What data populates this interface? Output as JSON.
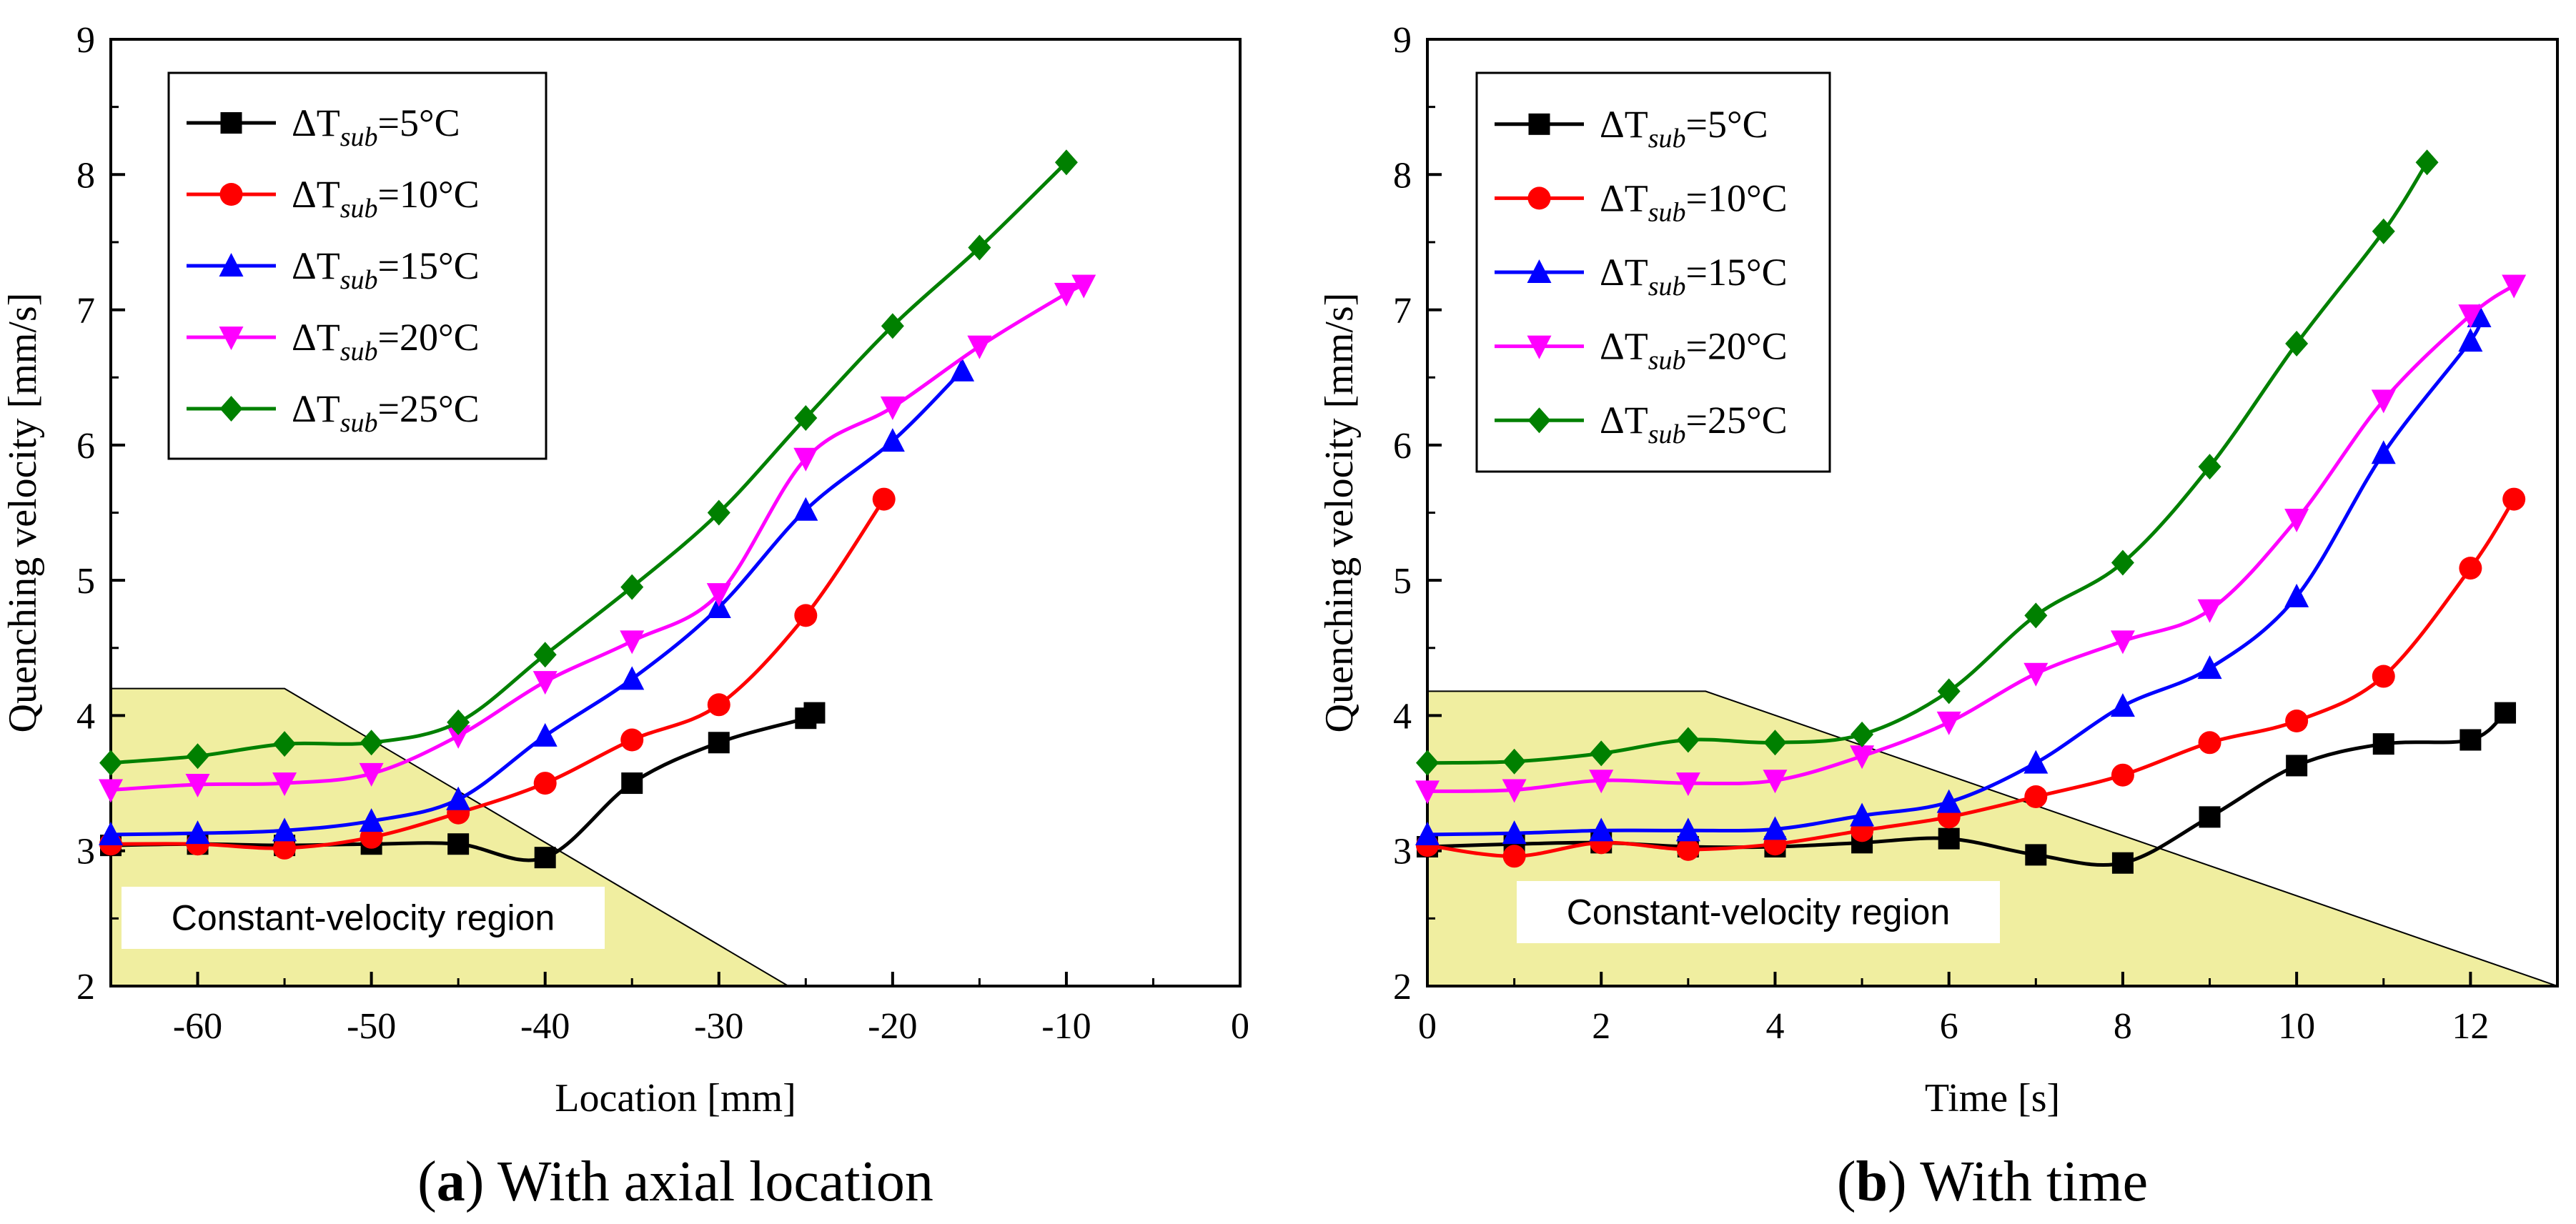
{
  "colors": {
    "series": [
      "#000000",
      "#ff0000",
      "#0000ff",
      "#ff00ff",
      "#008000"
    ],
    "region_fill": "#f0eea0"
  },
  "series_labels": [
    "ΔTsub=5°C",
    "ΔTsub=10°C",
    "ΔTsub=15°C",
    "ΔTsub=20°C",
    "ΔTsub=25°C"
  ],
  "legend_prefix": "ΔT",
  "legend_sub": "sub",
  "legend_suffixes": [
    "=5°C",
    "=10°C",
    "=15°C",
    "=20°C",
    "=25°C"
  ],
  "chart_data": [
    {
      "type": "line",
      "panel": "a",
      "caption_letter": "a",
      "caption_text": "With axial location",
      "xlabel": "Location [mm]",
      "ylabel": "Quenching velocity [mm/s]",
      "xlim": [
        -65,
        0
      ],
      "ylim": [
        2,
        9
      ],
      "xticks": [
        -60,
        -50,
        -40,
        -30,
        -20,
        -10,
        0
      ],
      "xtick_labels": [
        "-60",
        "-50",
        "-40",
        "-30",
        "-20",
        "-10",
        "0"
      ],
      "yticks": [
        2,
        3,
        4,
        5,
        6,
        7,
        8,
        9
      ],
      "ytick_labels": [
        "2",
        "3",
        "4",
        "5",
        "6",
        "7",
        "8",
        "9"
      ],
      "region_label": "Constant-velocity region",
      "region_polygon": [
        [
          -65,
          2
        ],
        [
          -65,
          4.2
        ],
        [
          -55,
          4.2
        ],
        [
          -26,
          2
        ]
      ],
      "legend_position": "top-left",
      "series": [
        {
          "name": "ΔTsub=5°C",
          "marker": "square",
          "x": [
            -65,
            -60,
            -55,
            -50,
            -45,
            -40,
            -35,
            -30,
            -25,
            -24.5
          ],
          "y": [
            3.04,
            3.05,
            3.04,
            3.05,
            3.05,
            2.95,
            3.5,
            3.8,
            3.98,
            4.02
          ]
        },
        {
          "name": "ΔTsub=10°C",
          "marker": "circle",
          "x": [
            -65,
            -60,
            -55,
            -50,
            -45,
            -40,
            -35,
            -30,
            -25,
            -20.5
          ],
          "y": [
            3.05,
            3.05,
            3.02,
            3.1,
            3.28,
            3.5,
            3.82,
            4.08,
            4.74,
            5.6
          ]
        },
        {
          "name": "ΔTsub=15°C",
          "marker": "triangle-up",
          "x": [
            -65,
            -60,
            -55,
            -50,
            -45,
            -40,
            -35,
            -30,
            -25,
            -20,
            -16
          ],
          "y": [
            3.12,
            3.13,
            3.15,
            3.22,
            3.38,
            3.85,
            4.27,
            4.8,
            5.52,
            6.03,
            6.55
          ]
        },
        {
          "name": "ΔTsub=20°C",
          "marker": "triangle-down",
          "x": [
            -65,
            -60,
            -55,
            -50,
            -45,
            -40,
            -35,
            -30,
            -25,
            -20,
            -15,
            -10,
            -9
          ],
          "y": [
            3.45,
            3.49,
            3.5,
            3.57,
            3.85,
            4.25,
            4.55,
            4.9,
            5.9,
            6.28,
            6.73,
            7.12,
            7.18
          ]
        },
        {
          "name": "ΔTsub=25°C",
          "marker": "diamond",
          "x": [
            -65,
            -60,
            -55,
            -50,
            -45,
            -40,
            -35,
            -30,
            -25,
            -20,
            -15,
            -10
          ],
          "y": [
            3.65,
            3.7,
            3.79,
            3.8,
            3.95,
            4.45,
            4.95,
            5.5,
            6.2,
            6.88,
            7.46,
            8.09
          ]
        }
      ]
    },
    {
      "type": "line",
      "panel": "b",
      "caption_letter": "b",
      "caption_text": "With time",
      "xlabel": "Time [s]",
      "ylabel": "Quenching velocity [mm/s]",
      "xlim": [
        0,
        13
      ],
      "ylim": [
        2,
        9
      ],
      "xticks": [
        0,
        2,
        4,
        6,
        8,
        10,
        12
      ],
      "xtick_labels": [
        "0",
        "2",
        "4",
        "6",
        "8",
        "10",
        "12"
      ],
      "yticks": [
        2,
        3,
        4,
        5,
        6,
        7,
        8,
        9
      ],
      "ytick_labels": [
        "2",
        "3",
        "4",
        "5",
        "6",
        "7",
        "8",
        "9"
      ],
      "region_label": "Constant-velocity region",
      "region_polygon": [
        [
          0,
          2
        ],
        [
          0,
          4.18
        ],
        [
          3.2,
          4.18
        ],
        [
          13,
          2
        ]
      ],
      "legend_position": "top-left",
      "series": [
        {
          "name": "ΔTsub=5°C",
          "marker": "square",
          "x": [
            0,
            1,
            2,
            3,
            4,
            5,
            6,
            7,
            8,
            9,
            10,
            11,
            12,
            12.4
          ],
          "y": [
            3.03,
            3.05,
            3.06,
            3.03,
            3.03,
            3.06,
            3.09,
            2.97,
            2.91,
            3.25,
            3.63,
            3.79,
            3.82,
            4.02
          ]
        },
        {
          "name": "ΔTsub=10°C",
          "marker": "circle",
          "x": [
            0,
            1,
            2,
            3,
            4,
            5,
            6,
            7,
            8,
            9,
            10,
            11,
            12,
            12.5
          ],
          "y": [
            3.04,
            2.96,
            3.06,
            3.01,
            3.05,
            3.15,
            3.25,
            3.4,
            3.56,
            3.8,
            3.96,
            4.29,
            5.09,
            5.6
          ]
        },
        {
          "name": "ΔTsub=15°C",
          "marker": "triangle-up",
          "x": [
            0,
            1,
            2,
            3,
            4,
            5,
            6,
            7,
            8,
            9,
            10,
            11,
            12,
            12.1
          ],
          "y": [
            3.12,
            3.13,
            3.15,
            3.15,
            3.16,
            3.26,
            3.36,
            3.65,
            4.07,
            4.35,
            4.88,
            5.94,
            6.77,
            6.95
          ]
        },
        {
          "name": "ΔTsub=20°C",
          "marker": "triangle-down",
          "x": [
            0,
            1,
            2,
            3,
            4,
            5,
            6,
            7,
            8,
            9,
            10,
            11,
            12,
            12.5
          ],
          "y": [
            3.44,
            3.45,
            3.52,
            3.5,
            3.52,
            3.7,
            3.95,
            4.31,
            4.55,
            4.78,
            5.45,
            6.33,
            6.96,
            7.18
          ]
        },
        {
          "name": "ΔTsub=25°C",
          "marker": "diamond",
          "x": [
            0,
            1,
            2,
            3,
            4,
            5,
            6,
            7,
            8,
            9,
            10,
            11,
            11.5
          ],
          "y": [
            3.65,
            3.66,
            3.72,
            3.82,
            3.8,
            3.86,
            4.18,
            4.74,
            5.13,
            5.84,
            6.75,
            7.58,
            8.09
          ]
        }
      ]
    }
  ]
}
